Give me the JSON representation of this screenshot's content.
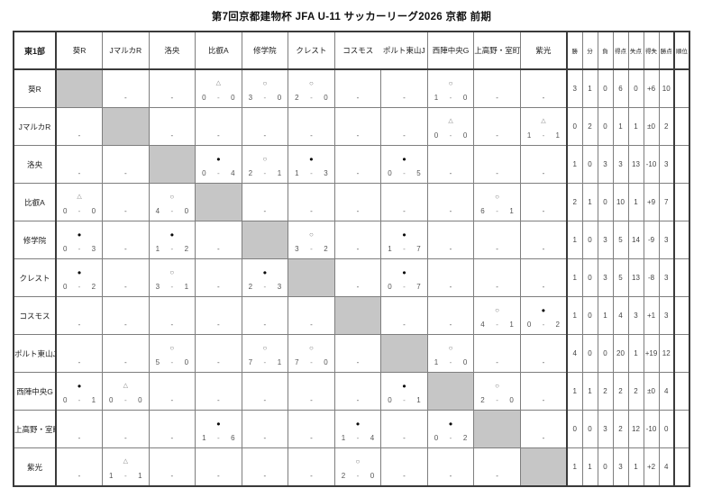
{
  "title": "第7回京都建物杯 JFA U-11 サッカーリーグ2026 京都 前期",
  "table": {
    "corner_label": "東1部",
    "teams": [
      "葵R",
      "JマルカR",
      "洛央",
      "比叡A",
      "修学院",
      "クレスト",
      "コスモス",
      "ポルト東山J",
      "西陣中央G",
      "上高野・室町",
      "紫光"
    ],
    "stat_headers": [
      "勝",
      "分",
      "負",
      "得点",
      "失点",
      "得失",
      "勝点",
      "順位"
    ],
    "no_match_mark": "-",
    "symbols": {
      "win": "○",
      "loss": "●",
      "draw": "△"
    },
    "colors": {
      "diagonal_fill": "#c6c6c6",
      "grid_line": "#7e7e7e",
      "outer_line": "#3a3a3a"
    },
    "rows": [
      {
        "team": "葵R",
        "cells": [
          null,
          "-",
          "-",
          "△ 0-0",
          "○ 3-0",
          "○ 2-0",
          "-",
          "-",
          "○ 1-0",
          "-",
          "-"
        ],
        "stats": [
          "3",
          "1",
          "0",
          "6",
          "0",
          "+6",
          "10",
          ""
        ]
      },
      {
        "team": "JマルカR",
        "cells": [
          "-",
          null,
          "-",
          "-",
          "-",
          "-",
          "-",
          "-",
          "△ 0-0",
          "-",
          "△ 1-1"
        ],
        "stats": [
          "0",
          "2",
          "0",
          "1",
          "1",
          "±0",
          "2",
          ""
        ]
      },
      {
        "team": "洛央",
        "cells": [
          "-",
          "-",
          null,
          "● 0-4",
          "○ 2-1",
          "● 1-3",
          "-",
          "● 0-5",
          "-",
          "-",
          "-"
        ],
        "stats": [
          "1",
          "0",
          "3",
          "3",
          "13",
          "-10",
          "3",
          ""
        ]
      },
      {
        "team": "比叡A",
        "cells": [
          "△ 0-0",
          "-",
          "○ 4-0",
          null,
          "-",
          "-",
          "-",
          "-",
          "-",
          "○ 6-1",
          "-"
        ],
        "stats": [
          "2",
          "1",
          "0",
          "10",
          "1",
          "+9",
          "7",
          ""
        ]
      },
      {
        "team": "修学院",
        "cells": [
          "● 0-3",
          "-",
          "● 1-2",
          "-",
          null,
          "○ 3-2",
          "-",
          "● 1-7",
          "-",
          "-",
          "-"
        ],
        "stats": [
          "1",
          "0",
          "3",
          "5",
          "14",
          "-9",
          "3",
          ""
        ]
      },
      {
        "team": "クレスト",
        "cells": [
          "● 0-2",
          "-",
          "○ 3-1",
          "-",
          "● 2-3",
          null,
          "-",
          "● 0-7",
          "-",
          "-",
          "-"
        ],
        "stats": [
          "1",
          "0",
          "3",
          "5",
          "13",
          "-8",
          "3",
          ""
        ]
      },
      {
        "team": "コスモス",
        "cells": [
          "-",
          "-",
          "-",
          "-",
          "-",
          "-",
          null,
          "-",
          "-",
          "○ 4-1",
          "● 0-2"
        ],
        "stats": [
          "1",
          "0",
          "1",
          "4",
          "3",
          "+1",
          "3",
          ""
        ]
      },
      {
        "team": "ポルト東山J",
        "cells": [
          "-",
          "-",
          "○ 5-0",
          "-",
          "○ 7-1",
          "○ 7-0",
          "-",
          null,
          "○ 1-0",
          "-",
          "-"
        ],
        "stats": [
          "4",
          "0",
          "0",
          "20",
          "1",
          "+19",
          "12",
          ""
        ]
      },
      {
        "team": "西陣中央G",
        "cells": [
          "● 0-1",
          "△ 0-0",
          "-",
          "-",
          "-",
          "-",
          "-",
          "● 0-1",
          null,
          "○ 2-0",
          "-"
        ],
        "stats": [
          "1",
          "1",
          "2",
          "2",
          "2",
          "±0",
          "4",
          ""
        ]
      },
      {
        "team": "上高野・室町",
        "cells": [
          "-",
          "-",
          "-",
          "● 1-6",
          "-",
          "-",
          "● 1-4",
          "-",
          "● 0-2",
          null,
          "-"
        ],
        "stats": [
          "0",
          "0",
          "3",
          "2",
          "12",
          "-10",
          "0",
          ""
        ]
      },
      {
        "team": "紫光",
        "cells": [
          "-",
          "△ 1-1",
          "-",
          "-",
          "-",
          "-",
          "○ 2-0",
          "-",
          "-",
          "-",
          null
        ],
        "stats": [
          "1",
          "1",
          "0",
          "3",
          "1",
          "+2",
          "4",
          ""
        ]
      }
    ]
  }
}
